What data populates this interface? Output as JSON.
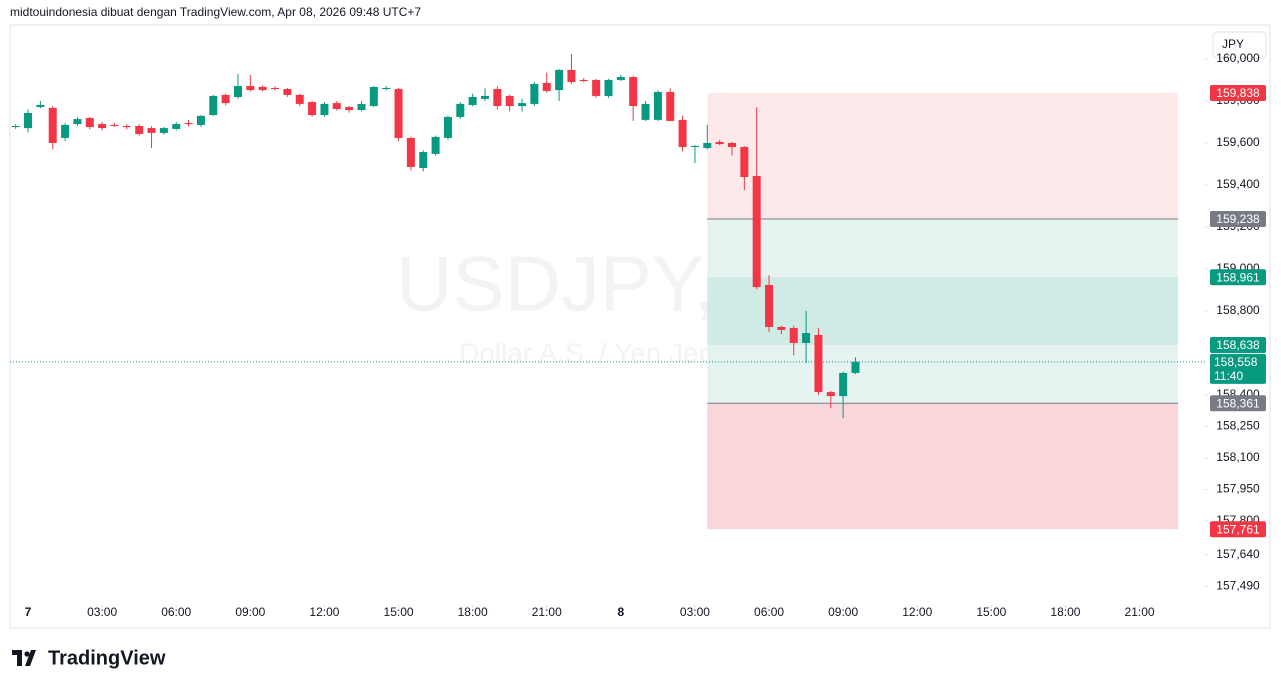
{
  "chart_data": {
    "type": "candlestick",
    "header": "midtouindonesia dibuat dengan TradingView.com, Apr 08, 2026 09:48 UTC+7",
    "watermark": "USDJPY, 30",
    "watermark_subtitle": "Dollar A.S. / Yen Jepang",
    "currency": "JPY",
    "logo": "TradingView",
    "up_color": "#089981",
    "down_color": "#f23645",
    "xlim": [
      -0.73,
      47.65
    ],
    "ylim": [
      157424,
      160138
    ],
    "xticks": [
      {
        "value": 0,
        "label": "7"
      },
      {
        "value": 3,
        "label": "03:00"
      },
      {
        "value": 6,
        "label": "06:00"
      },
      {
        "value": 9,
        "label": "09:00"
      },
      {
        "value": 12,
        "label": "12:00"
      },
      {
        "value": 15,
        "label": "15:00"
      },
      {
        "value": 18,
        "label": "18:00"
      },
      {
        "value": 21,
        "label": "21:00"
      },
      {
        "value": 24,
        "label": "8"
      },
      {
        "value": 27,
        "label": "03:00"
      },
      {
        "value": 30,
        "label": "06:00"
      },
      {
        "value": 33,
        "label": "09:00"
      },
      {
        "value": 36,
        "label": "12:00"
      },
      {
        "value": 39,
        "label": "15:00"
      },
      {
        "value": 42,
        "label": "18:00"
      },
      {
        "value": 45,
        "label": "21:00"
      }
    ],
    "yticks": [
      {
        "value": 160000,
        "label": "160,000"
      },
      {
        "value": 159800,
        "label": "159,800"
      },
      {
        "value": 159600,
        "label": "159,600"
      },
      {
        "value": 159400,
        "label": "159,400"
      },
      {
        "value": 159200,
        "label": "159,200"
      },
      {
        "value": 159000,
        "label": "159,000"
      },
      {
        "value": 158800,
        "label": "158,800"
      },
      {
        "value": 158400,
        "label": "158,400"
      },
      {
        "value": 158250,
        "label": "158,250"
      },
      {
        "value": 158100,
        "label": "158,100"
      },
      {
        "value": 157950,
        "label": "157,950"
      },
      {
        "value": 157800,
        "label": "157,800"
      },
      {
        "value": 157640,
        "label": "157,640"
      },
      {
        "value": 157490,
        "label": "157,490"
      }
    ],
    "x": [
      -0.5,
      0,
      0.5,
      1,
      1.5,
      2,
      2.5,
      3,
      3.5,
      4,
      4.5,
      5,
      5.5,
      6,
      6.5,
      7,
      7.5,
      8,
      8.5,
      9,
      9.5,
      10,
      10.5,
      11,
      11.5,
      12,
      12.5,
      13,
      13.5,
      14,
      14.5,
      15,
      15.5,
      16,
      16.5,
      17,
      17.5,
      18,
      18.5,
      19,
      19.5,
      20,
      20.5,
      21,
      21.5,
      22,
      22.5,
      23,
      23.5,
      24,
      24.5,
      25,
      25.5,
      26,
      26.5,
      27,
      27.5,
      28,
      28.5,
      29,
      29.5,
      30,
      30.5,
      31,
      31.5,
      32,
      32.5,
      33,
      33.5
    ],
    "open": [
      159676,
      159671,
      159771,
      159767,
      159624,
      159690,
      159719,
      159690,
      159686,
      159681,
      159681,
      159671,
      159648,
      159667,
      159695,
      159686,
      159733,
      159829,
      159819,
      159871,
      159867,
      159862,
      159857,
      159829,
      159795,
      159733,
      159790,
      159771,
      159757,
      159776,
      159857,
      159857,
      159624,
      159481,
      159548,
      159624,
      159724,
      159781,
      159810,
      159857,
      159824,
      159776,
      159786,
      159886,
      159852,
      159948,
      159900,
      159900,
      159824,
      159900,
      159914,
      159710,
      159710,
      159843,
      159710,
      159581,
      159576,
      159605,
      159600,
      159581,
      159443,
      158924,
      158724,
      158719,
      158648,
      158686,
      158414,
      158395,
      158505
    ],
    "high": [
      159690,
      159760,
      159800,
      159776,
      159695,
      159724,
      159724,
      159700,
      159695,
      159690,
      159690,
      159680,
      159676,
      159700,
      159710,
      159733,
      159829,
      159835,
      159929,
      159924,
      159875,
      159870,
      159862,
      159835,
      159800,
      159795,
      159800,
      159776,
      159800,
      159871,
      159871,
      159862,
      159630,
      159565,
      159635,
      159730,
      159795,
      159835,
      159860,
      159871,
      159830,
      159810,
      159890,
      159935,
      159952,
      160024,
      159910,
      159905,
      159905,
      159925,
      159920,
      159800,
      159850,
      159860,
      159730,
      159590,
      159686,
      159615,
      159605,
      159585,
      159770,
      158970,
      158730,
      158730,
      158800,
      158720,
      158420,
      158510,
      158580
    ],
    "low": [
      159667,
      159650,
      159765,
      159570,
      159610,
      159680,
      159665,
      159660,
      159676,
      159665,
      159635,
      159576,
      159640,
      159660,
      159680,
      159676,
      159729,
      159780,
      159810,
      159845,
      159845,
      159850,
      159820,
      159775,
      159725,
      159725,
      159755,
      159745,
      159750,
      159770,
      159850,
      159610,
      159470,
      159465,
      159540,
      159615,
      159715,
      159775,
      159800,
      159760,
      159750,
      159750,
      159776,
      159840,
      159800,
      159880,
      159890,
      159815,
      159815,
      159895,
      159705,
      159705,
      159705,
      159705,
      159560,
      159505,
      159570,
      159590,
      159540,
      159376,
      158905,
      158700,
      158690,
      158590,
      158552,
      158400,
      158338,
      158290,
      158500
    ],
    "close": [
      159681,
      159743,
      159781,
      159600,
      159686,
      159714,
      159676,
      159671,
      159681,
      159676,
      159643,
      159648,
      159671,
      159690,
      159690,
      159729,
      159824,
      159790,
      159871,
      159852,
      159852,
      159857,
      159829,
      159786,
      159733,
      159786,
      159762,
      159757,
      159786,
      159867,
      159862,
      159624,
      159486,
      159557,
      159629,
      159724,
      159786,
      159819,
      159824,
      159776,
      159776,
      159790,
      159881,
      159848,
      159948,
      159890,
      159895,
      159824,
      159900,
      159914,
      159776,
      159786,
      159843,
      159705,
      159581,
      159586,
      159600,
      159595,
      159581,
      159438,
      158914,
      158724,
      158710,
      158648,
      158695,
      158414,
      158395,
      158505,
      158558
    ],
    "zones": [
      {
        "x0": 27.5,
        "x1": 46.56,
        "low": 159238,
        "high": 159838,
        "color": "#fde9ea"
      },
      {
        "x0": 27.5,
        "x1": 46.56,
        "low": 158361,
        "high": 159238,
        "color": "#e6f4f1"
      },
      {
        "x0": 27.5,
        "x1": 46.56,
        "low": 158638,
        "high": 158961,
        "color": "#d0ebe5"
      },
      {
        "x0": 27.5,
        "x1": 46.56,
        "low": 157761,
        "high": 158361,
        "color": "#f9d6da"
      }
    ],
    "lines": [
      159238,
      158361
    ],
    "price_labels": [
      {
        "value": 159838,
        "label": "159,838",
        "color": "#f23645"
      },
      {
        "value": 159238,
        "label": "159,238",
        "color": "#787b86"
      },
      {
        "value": 158961,
        "label": "158,961",
        "color": "#089981"
      },
      {
        "value": 158638,
        "label": "158,638",
        "color": "#089981"
      },
      {
        "value": 158361,
        "label": "158,361",
        "color": "#787b86"
      },
      {
        "value": 157761,
        "label": "157,761",
        "color": "#f23645"
      }
    ],
    "current": {
      "value": 158558,
      "label": "158,558",
      "countdown": "11:40",
      "color": "#089981"
    }
  }
}
